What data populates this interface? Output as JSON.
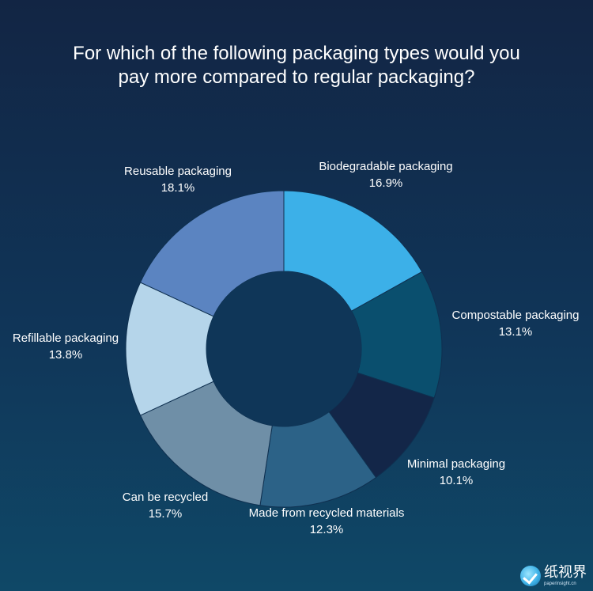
{
  "title_lines": [
    "For which of the following packaging types would you",
    "pay more compared to regular packaging?"
  ],
  "chart_data": {
    "type": "pie",
    "title": "For which of the following packaging types would you pay more compared to regular packaging?",
    "donut": true,
    "start": "12 o'clock, clockwise",
    "slices": [
      {
        "label": "Biodegradable packaging",
        "value": 16.9,
        "display": "16.9%",
        "color": "#3cb0e8"
      },
      {
        "label": "Compostable packaging",
        "value": 13.1,
        "display": "13.1%",
        "color": "#0a4f6e"
      },
      {
        "label": "Minimal packaging",
        "value": 10.1,
        "display": "10.1%",
        "color": "#132648"
      },
      {
        "label": "Made from recycled materials",
        "value": 12.3,
        "display": "12.3%",
        "color": "#2c6287"
      },
      {
        "label": "Can be recycled",
        "value": 15.7,
        "display": "15.7%",
        "color": "#6f8fa7"
      },
      {
        "label": "Refillable packaging",
        "value": 13.8,
        "display": "13.8%",
        "color": "#b5d5ea"
      },
      {
        "label": "Reusable packaging",
        "value": 18.1,
        "display": "18.1%",
        "color": "#5b84c1"
      }
    ]
  },
  "watermark": {
    "text": "纸视界",
    "subtext": "paperinsight.cn"
  }
}
